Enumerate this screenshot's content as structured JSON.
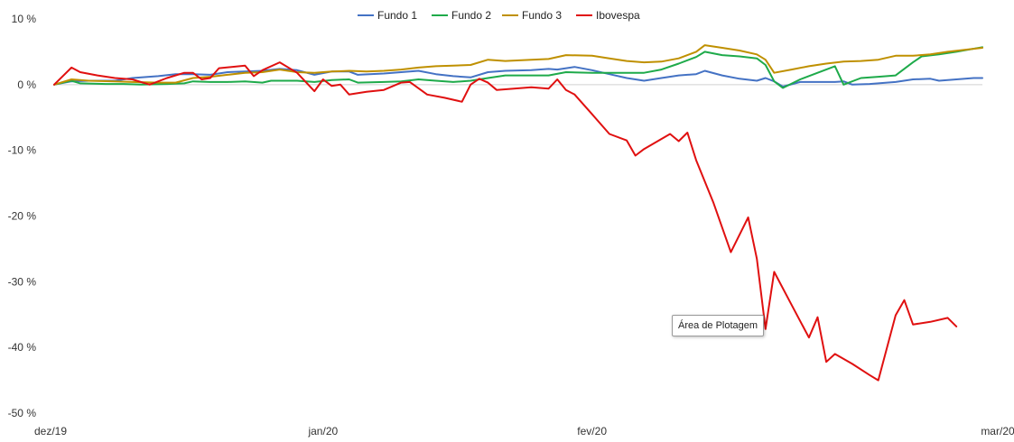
{
  "chart_data": {
    "type": "line",
    "title": "",
    "xlabel": "",
    "ylabel": "",
    "ylim": [
      -50,
      10
    ],
    "y_ticks": [
      10,
      0,
      -10,
      -20,
      -30,
      -40,
      -50
    ],
    "y_tick_labels": [
      "10 %",
      "0 %",
      "-10 %",
      "-20 %",
      "-30 %",
      "-40 %",
      "-50 %"
    ],
    "x_tick_labels": [
      "dez/19",
      "jan/20",
      "fev/20",
      "mar/20"
    ],
    "x_tick_positions": [
      0,
      31,
      62,
      91
    ],
    "legend_position": "top",
    "grid": false,
    "series": [
      {
        "name": "Fundo 1",
        "color": "#4472C4",
        "points": [
          [
            0,
            0
          ],
          [
            2,
            0.5
          ],
          [
            4,
            0.6
          ],
          [
            7,
            0.6
          ],
          [
            9,
            1.0
          ],
          [
            12,
            1.3
          ],
          [
            14,
            1.6
          ],
          [
            16,
            1.6
          ],
          [
            18,
            1.5
          ],
          [
            20,
            1.9
          ],
          [
            22,
            2.0
          ],
          [
            24,
            2.1
          ],
          [
            26,
            2.4
          ],
          [
            28,
            2.2
          ],
          [
            30,
            1.5
          ],
          [
            32,
            2.0
          ],
          [
            34,
            2.0
          ],
          [
            35,
            1.5
          ],
          [
            38,
            1.7
          ],
          [
            40,
            1.9
          ],
          [
            42,
            2.1
          ],
          [
            44,
            1.6
          ],
          [
            46,
            1.3
          ],
          [
            48,
            1.1
          ],
          [
            50,
            1.9
          ],
          [
            52,
            2.1
          ],
          [
            55,
            2.2
          ],
          [
            57,
            2.4
          ],
          [
            58,
            2.3
          ],
          [
            60,
            2.7
          ],
          [
            62,
            2.2
          ],
          [
            64,
            1.6
          ],
          [
            66,
            1.0
          ],
          [
            68,
            0.6
          ],
          [
            70,
            1.0
          ],
          [
            72,
            1.4
          ],
          [
            74,
            1.6
          ],
          [
            75,
            2.1
          ],
          [
            77,
            1.4
          ],
          [
            79,
            0.9
          ],
          [
            81,
            0.6
          ],
          [
            82,
            1.0
          ],
          [
            83,
            0.5
          ],
          [
            84,
            -0.3
          ],
          [
            86,
            0.4
          ],
          [
            88,
            0.4
          ],
          [
            90,
            0.4
          ],
          [
            91,
            0.5
          ],
          [
            92,
            0.0
          ],
          [
            94,
            0.1
          ],
          [
            97,
            0.4
          ],
          [
            99,
            0.8
          ],
          [
            101,
            0.9
          ],
          [
            102,
            0.6
          ],
          [
            104,
            0.8
          ],
          [
            106,
            1.0
          ],
          [
            107,
            1.0
          ]
        ]
      },
      {
        "name": "Fundo 2",
        "color": "#1EAA4A",
        "points": [
          [
            0,
            0
          ],
          [
            2,
            0.6
          ],
          [
            3,
            0.2
          ],
          [
            6,
            0.1
          ],
          [
            8,
            0.1
          ],
          [
            10,
            0.0
          ],
          [
            13,
            0.1
          ],
          [
            15,
            0.2
          ],
          [
            16,
            0.5
          ],
          [
            18,
            0.4
          ],
          [
            20,
            0.4
          ],
          [
            22,
            0.5
          ],
          [
            24,
            0.3
          ],
          [
            25,
            0.6
          ],
          [
            28,
            0.6
          ],
          [
            30,
            0.4
          ],
          [
            32,
            0.7
          ],
          [
            34,
            0.8
          ],
          [
            35,
            0.3
          ],
          [
            38,
            0.4
          ],
          [
            40,
            0.5
          ],
          [
            42,
            0.8
          ],
          [
            44,
            0.6
          ],
          [
            46,
            0.4
          ],
          [
            48,
            0.6
          ],
          [
            50,
            1.0
          ],
          [
            52,
            1.4
          ],
          [
            55,
            1.4
          ],
          [
            57,
            1.4
          ],
          [
            59,
            1.9
          ],
          [
            62,
            1.8
          ],
          [
            64,
            1.8
          ],
          [
            66,
            1.8
          ],
          [
            68,
            1.8
          ],
          [
            70,
            2.3
          ],
          [
            72,
            3.2
          ],
          [
            74,
            4.2
          ],
          [
            75,
            5.0
          ],
          [
            77,
            4.5
          ],
          [
            79,
            4.3
          ],
          [
            81,
            4.0
          ],
          [
            82,
            3.0
          ],
          [
            83,
            0.5
          ],
          [
            84,
            -0.5
          ],
          [
            86,
            0.8
          ],
          [
            88,
            1.8
          ],
          [
            90,
            2.8
          ],
          [
            91,
            0.0
          ],
          [
            93,
            1.0
          ],
          [
            95,
            1.2
          ],
          [
            97,
            1.4
          ],
          [
            99,
            3.4
          ],
          [
            100,
            4.3
          ],
          [
            102,
            4.6
          ],
          [
            104,
            5.0
          ],
          [
            107,
            5.7
          ]
        ]
      },
      {
        "name": "Fundo 3",
        "color": "#BF9000",
        "points": [
          [
            0,
            0
          ],
          [
            2,
            0.8
          ],
          [
            4,
            0.6
          ],
          [
            7,
            0.5
          ],
          [
            9,
            0.4
          ],
          [
            12,
            0.3
          ],
          [
            14,
            0.3
          ],
          [
            16,
            1.0
          ],
          [
            18,
            1.2
          ],
          [
            20,
            1.5
          ],
          [
            22,
            1.8
          ],
          [
            24,
            1.9
          ],
          [
            26,
            2.3
          ],
          [
            28,
            1.9
          ],
          [
            30,
            1.8
          ],
          [
            32,
            2.0
          ],
          [
            34,
            2.1
          ],
          [
            36,
            2.0
          ],
          [
            38,
            2.1
          ],
          [
            40,
            2.3
          ],
          [
            42,
            2.6
          ],
          [
            44,
            2.8
          ],
          [
            46,
            2.9
          ],
          [
            48,
            3.0
          ],
          [
            50,
            3.8
          ],
          [
            52,
            3.6
          ],
          [
            55,
            3.8
          ],
          [
            57,
            3.9
          ],
          [
            59,
            4.5
          ],
          [
            62,
            4.4
          ],
          [
            64,
            4.0
          ],
          [
            66,
            3.6
          ],
          [
            68,
            3.4
          ],
          [
            70,
            3.5
          ],
          [
            72,
            4.0
          ],
          [
            74,
            5.0
          ],
          [
            75,
            6.0
          ],
          [
            77,
            5.6
          ],
          [
            79,
            5.2
          ],
          [
            81,
            4.6
          ],
          [
            82,
            3.8
          ],
          [
            83,
            1.8
          ],
          [
            85,
            2.3
          ],
          [
            87,
            2.8
          ],
          [
            89,
            3.2
          ],
          [
            91,
            3.5
          ],
          [
            93,
            3.6
          ],
          [
            95,
            3.8
          ],
          [
            97,
            4.4
          ],
          [
            99,
            4.4
          ],
          [
            101,
            4.6
          ],
          [
            103,
            5.0
          ],
          [
            107,
            5.6
          ]
        ]
      },
      {
        "name": "Ibovespa",
        "color": "#E01010",
        "points": [
          [
            0,
            0
          ],
          [
            2,
            2.6
          ],
          [
            3,
            1.9
          ],
          [
            5,
            1.4
          ],
          [
            7,
            1.0
          ],
          [
            9,
            0.8
          ],
          [
            11,
            0.0
          ],
          [
            13,
            1.0
          ],
          [
            15,
            1.8
          ],
          [
            16,
            1.8
          ],
          [
            17,
            0.8
          ],
          [
            18,
            1.0
          ],
          [
            19,
            2.5
          ],
          [
            22,
            2.9
          ],
          [
            23,
            1.3
          ],
          [
            24,
            2.2
          ],
          [
            26,
            3.4
          ],
          [
            28,
            1.8
          ],
          [
            30,
            -1.0
          ],
          [
            31,
            0.8
          ],
          [
            32,
            -0.2
          ],
          [
            33,
            0.0
          ],
          [
            34,
            -1.5
          ],
          [
            36,
            -1.1
          ],
          [
            38,
            -0.8
          ],
          [
            40,
            0.3
          ],
          [
            41,
            0.4
          ],
          [
            43,
            -1.5
          ],
          [
            45,
            -2.0
          ],
          [
            47,
            -2.6
          ],
          [
            48,
            0.0
          ],
          [
            49,
            0.9
          ],
          [
            50,
            0.3
          ],
          [
            51,
            -0.8
          ],
          [
            53,
            -0.6
          ],
          [
            55,
            -0.4
          ],
          [
            57,
            -0.6
          ],
          [
            58,
            0.8
          ],
          [
            59,
            -0.8
          ],
          [
            60,
            -1.5
          ],
          [
            62,
            -4.5
          ],
          [
            64,
            -7.5
          ],
          [
            66,
            -8.5
          ],
          [
            67,
            -10.8
          ],
          [
            68,
            -9.8
          ],
          [
            71,
            -7.5
          ],
          [
            72,
            -8.6
          ],
          [
            73,
            -7.3
          ],
          [
            74,
            -11.5
          ],
          [
            76,
            -18.0
          ],
          [
            78,
            -25.5
          ],
          [
            80,
            -20.2
          ],
          [
            81,
            -26.5
          ],
          [
            82,
            -37.2
          ],
          [
            83,
            -28.5
          ],
          [
            85,
            -33.5
          ],
          [
            87,
            -38.5
          ],
          [
            88,
            -35.4
          ],
          [
            89,
            -42.2
          ],
          [
            90,
            -41.0
          ],
          [
            92,
            -42.5
          ],
          [
            94,
            -44.2
          ],
          [
            95,
            -45.0
          ],
          [
            97,
            -35.1
          ],
          [
            98,
            -32.8
          ],
          [
            99,
            -36.5
          ],
          [
            101,
            -36.1
          ],
          [
            103,
            -35.5
          ],
          [
            104,
            -36.8
          ]
        ]
      }
    ]
  },
  "tooltip": {
    "text": "Área de Plotagem"
  }
}
